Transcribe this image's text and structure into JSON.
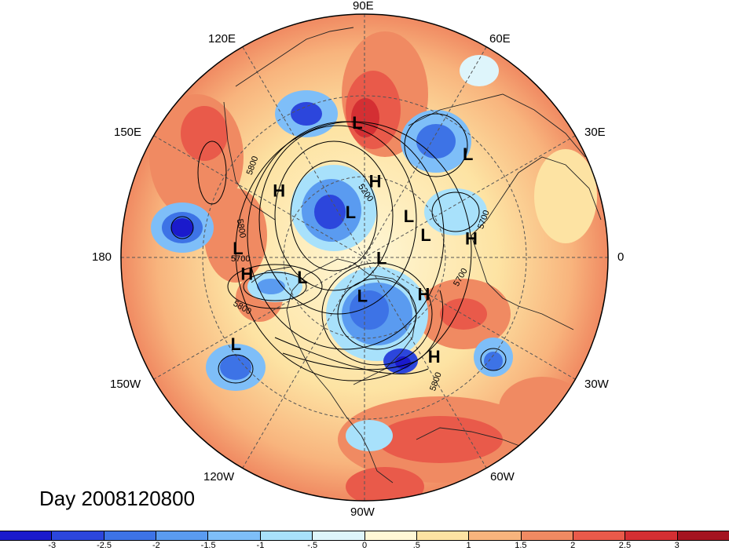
{
  "map": {
    "date_label": "Day 2008120800",
    "longitude_labels": [
      "90E",
      "60E",
      "30E",
      "0",
      "30W",
      "60W",
      "90W",
      "120W",
      "150W",
      "180",
      "150E",
      "120E"
    ],
    "pressure_centers": [
      {
        "type": "L",
        "lon": 93,
        "lat": 32
      },
      {
        "type": "H",
        "lon": 82,
        "lat": 55
      },
      {
        "type": "L",
        "lon": 45,
        "lat": 28
      },
      {
        "type": "H",
        "lon": 10,
        "lat": 42
      },
      {
        "type": "L",
        "lon": 20,
        "lat": 60
      },
      {
        "type": "L",
        "lon": 43,
        "lat": 62
      },
      {
        "type": "H",
        "lon": 142,
        "lat": 42
      },
      {
        "type": "L",
        "lon": 176,
        "lat": 35
      },
      {
        "type": "L",
        "lon": 107,
        "lat": 68
      },
      {
        "type": "L",
        "lon": -2,
        "lat": 82
      },
      {
        "type": "L",
        "lon": -162,
        "lat": 60
      },
      {
        "type": "H",
        "lon": -172,
        "lat": 38
      },
      {
        "type": "L",
        "lon": -93,
        "lat": 72
      },
      {
        "type": "H",
        "lon": -32,
        "lat": 58
      },
      {
        "type": "L",
        "lon": -146,
        "lat": 25
      },
      {
        "type": "H",
        "lon": -55,
        "lat": 37
      }
    ],
    "contour_labels": [
      "5800",
      "5200",
      "5700",
      "5700",
      "5800",
      "5700",
      "5800",
      "5800"
    ]
  },
  "colorbar": {
    "ticks": [
      "-3",
      "-2.5",
      "-2",
      "-1.5",
      "-1",
      "-.5",
      "0",
      ".5",
      "1",
      "1.5",
      "2",
      "2.5",
      "3"
    ],
    "colors": [
      "#1a1acc",
      "#2c46dc",
      "#3d73e6",
      "#5a9bf0",
      "#7ebef8",
      "#a8e1fb",
      "#def5fb",
      "#fff7d6",
      "#fde3a3",
      "#f8b47d",
      "#f08a62",
      "#e95a4a",
      "#d42f33",
      "#a41420"
    ]
  }
}
